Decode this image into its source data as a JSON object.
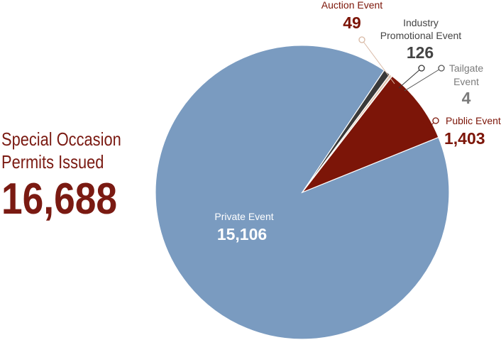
{
  "headline": {
    "title_line1": "Special Occasion",
    "title_line2": "Permits Issued",
    "total": "16,688"
  },
  "colors": {
    "accent": "#7a1a12",
    "private": "#7a9bc0",
    "public": "#7c1508",
    "industry": "#3a3a3a",
    "auction": "#e3c8b4",
    "tailgate": "#555555",
    "gray_label": "#7b7b7b",
    "dark_label": "#444444"
  },
  "chart_data": {
    "type": "pie",
    "title": "Special Occasion Permits Issued",
    "total": 16688,
    "categories": [
      "Private Event",
      "Public Event",
      "Tailgate Event",
      "Industry Promotional Event",
      "Auction Event"
    ],
    "values": [
      15106,
      1403,
      4,
      126,
      49
    ],
    "labels": [
      {
        "name": "Private Event",
        "value": "15,106"
      },
      {
        "name": "Public Event",
        "value": "1,403"
      },
      {
        "name_lines": [
          "Tailgate",
          "Event"
        ],
        "value": "4"
      },
      {
        "name_lines": [
          "Industry",
          "Promotional Event"
        ],
        "value": "126"
      },
      {
        "name": "Auction Event",
        "value": "49"
      }
    ]
  }
}
